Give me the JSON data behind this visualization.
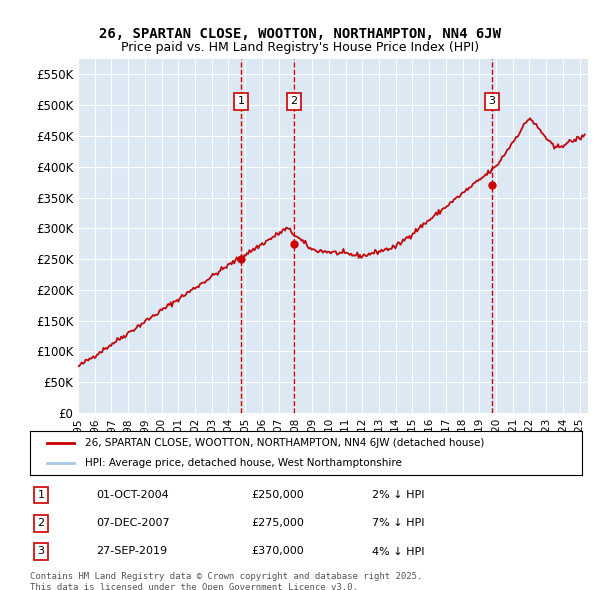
{
  "title_line1": "26, SPARTAN CLOSE, WOOTTON, NORTHAMPTON, NN4 6JW",
  "title_line2": "Price paid vs. HM Land Registry's House Price Index (HPI)",
  "ylabel": "",
  "background_color": "#ffffff",
  "plot_bg_color": "#dce9f5",
  "grid_color": "#ffffff",
  "hpi_color": "#a8c8e8",
  "price_color": "#cc0000",
  "sale_line_color": "#cc0000",
  "sale_marker_color": "#cc0000",
  "ylim": [
    0,
    575000
  ],
  "yticks": [
    0,
    50000,
    100000,
    150000,
    200000,
    250000,
    300000,
    350000,
    400000,
    450000,
    500000,
    550000
  ],
  "ytick_labels": [
    "£0",
    "£50K",
    "£100K",
    "£150K",
    "£200K",
    "£250K",
    "£300K",
    "£350K",
    "£400K",
    "£450K",
    "£500K",
    "£550K"
  ],
  "sales": [
    {
      "date_num": 2004.75,
      "price": 250000,
      "label": "1",
      "date_str": "01-OCT-2004",
      "pct": "2%"
    },
    {
      "date_num": 2007.92,
      "price": 275000,
      "label": "2",
      "date_str": "07-DEC-2007",
      "pct": "7%"
    },
    {
      "date_num": 2019.75,
      "price": 370000,
      "label": "3",
      "date_str": "27-SEP-2019",
      "pct": "4%"
    }
  ],
  "legend_label1": "26, SPARTAN CLOSE, WOOTTON, NORTHAMPTON, NN4 6JW (detached house)",
  "legend_label2": "HPI: Average price, detached house, West Northamptonshire",
  "footnote": "Contains HM Land Registry data © Crown copyright and database right 2025.\nThis data is licensed under the Open Government Licence v3.0.",
  "xmin": 1995.0,
  "xmax": 2025.5
}
